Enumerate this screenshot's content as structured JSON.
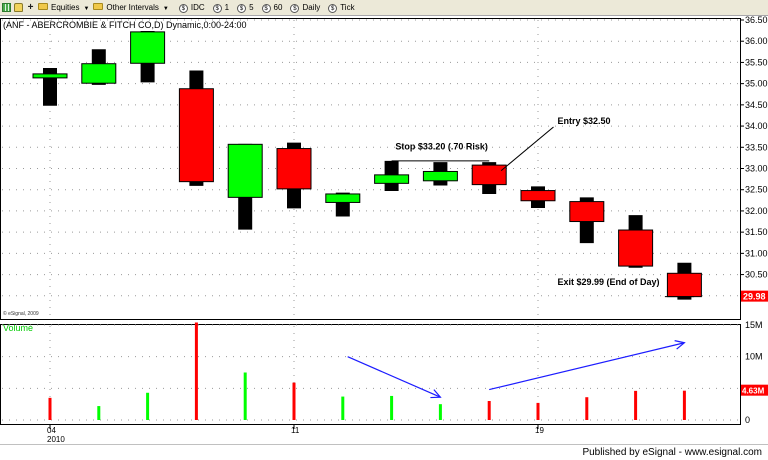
{
  "toolbar": {
    "items": [
      {
        "type": "folder",
        "label": "Equities",
        "dropdown": true
      },
      {
        "type": "folder",
        "label": "Other Intervals",
        "dropdown": true
      },
      {
        "type": "circle",
        "glyph": "$",
        "label": "IDC"
      },
      {
        "type": "circle",
        "glyph": "$",
        "label": "1"
      },
      {
        "type": "circle",
        "glyph": "$",
        "label": "5"
      },
      {
        "type": "circle",
        "glyph": "$",
        "label": "60"
      },
      {
        "type": "circle",
        "glyph": "$",
        "label": "Daily"
      },
      {
        "type": "circle",
        "glyph": "$",
        "label": "Tick"
      }
    ]
  },
  "chart_data": {
    "type": "candlestick",
    "title": "(ANF - ABERCROMBIE & FITCH CO,D) Dynamic,0:00-24:00",
    "watermark": "© eSignal, 2009",
    "colors": {
      "up": "#00ff00",
      "down": "#ff0000",
      "wick": "#000000",
      "annotation_arrow": "#1c1cff",
      "volume_label": "#00cc00"
    },
    "price_axis": {
      "min": 29.5,
      "max": 36.5,
      "ticks": [
        "36.50",
        "36.00",
        "35.50",
        "35.00",
        "34.50",
        "34.00",
        "33.50",
        "33.00",
        "32.50",
        "32.00",
        "31.50",
        "31.00",
        "30.50",
        "30.00"
      ],
      "last_price": "29.98"
    },
    "x_axis": {
      "labels": [
        {
          "text": "04",
          "sub": "2010",
          "index": 0
        },
        {
          "text": "11",
          "index": 5
        },
        {
          "text": "19",
          "index": 10
        }
      ]
    },
    "candles": [
      {
        "open": 35.17,
        "high": 35.37,
        "low": 34.48,
        "close": 35.23
      },
      {
        "open": 35.01,
        "high": 35.81,
        "low": 34.97,
        "close": 35.47
      },
      {
        "open": 35.48,
        "high": 36.24,
        "low": 35.03,
        "close": 36.22
      },
      {
        "open": 34.88,
        "high": 35.31,
        "low": 32.59,
        "close": 32.69
      },
      {
        "open": 32.32,
        "high": 33.58,
        "low": 31.56,
        "close": 33.57
      },
      {
        "open": 33.47,
        "high": 33.61,
        "low": 32.06,
        "close": 32.52
      },
      {
        "open": 32.2,
        "high": 32.43,
        "low": 31.87,
        "close": 32.4
      },
      {
        "open": 32.65,
        "high": 33.18,
        "low": 32.47,
        "close": 32.85
      },
      {
        "open": 32.71,
        "high": 33.15,
        "low": 32.6,
        "close": 32.93
      },
      {
        "open": 33.08,
        "high": 33.15,
        "low": 32.4,
        "close": 32.62
      },
      {
        "open": 32.48,
        "high": 32.58,
        "low": 32.07,
        "close": 32.24
      },
      {
        "open": 32.22,
        "high": 32.32,
        "low": 31.24,
        "close": 31.75
      },
      {
        "open": 31.55,
        "high": 31.9,
        "low": 30.66,
        "close": 30.7
      },
      {
        "open": 30.53,
        "high": 30.78,
        "low": 29.91,
        "close": 29.98
      }
    ],
    "volume_panel": {
      "label": "Volume",
      "max": 15,
      "ticks": [
        "15M",
        "10M",
        "5M",
        "0"
      ],
      "last_value": "4.63M",
      "values": [
        3.5,
        2.2,
        4.3,
        15.4,
        7.5,
        5.9,
        3.7,
        3.8,
        2.5,
        3.0,
        2.7,
        3.6,
        4.6,
        4.63
      ],
      "up": [
        false,
        true,
        true,
        false,
        true,
        false,
        true,
        true,
        true,
        false,
        false,
        false,
        false,
        false
      ]
    },
    "annotations": [
      {
        "text": "Stop $33.20 (.70 Risk)",
        "candle": 8,
        "price": 33.45,
        "line_price": 33.18,
        "line_from": 7,
        "line_to": 9
      },
      {
        "text": "Entry $32.50",
        "candle": 10.4,
        "price": 34.05,
        "pointer_to": 9,
        "pointer_price": 32.95
      },
      {
        "text": "Exit $29.99 (End of Day)",
        "candle": 10.4,
        "price": 30.25,
        "line_price": 29.98,
        "line_from": 12.6,
        "line_to": 13.2
      }
    ],
    "trend_arrows": [
      {
        "from": [
          6.1,
          10.0
        ],
        "to": [
          8.0,
          3.6
        ]
      },
      {
        "from": [
          9.0,
          4.8
        ],
        "to": [
          13.0,
          12.2
        ]
      }
    ]
  },
  "footer": {
    "text": "Published by eSignal - www.esignal.com"
  }
}
